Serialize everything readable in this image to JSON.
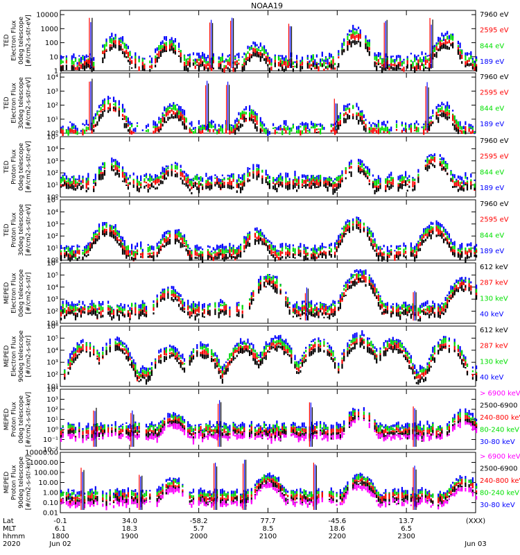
{
  "title": "NOAA19",
  "colors": {
    "black": "#000000",
    "red": "#ff0000",
    "green": "#00e000",
    "blue": "#0000ff",
    "magenta": "#ff00ff"
  },
  "chart_data": [
    {
      "type": "scatter",
      "name": "ted_e_0",
      "ylabel": [
        "TED",
        "Electron Flux",
        "0deg telescope",
        "[#/cm2-s-str-eV]"
      ],
      "log": true,
      "yticks": [
        {
          "v": 1,
          "t": "1"
        },
        {
          "v": 10,
          "t": "10"
        },
        {
          "v": 100,
          "t": "100"
        },
        {
          "v": 1000,
          "t": "1000"
        },
        {
          "v": 10000,
          "t": "10000"
        }
      ],
      "ylim": [
        1,
        20000
      ],
      "series": [
        {
          "name": "7960 eV",
          "color": "black"
        },
        {
          "name": "2595 eV",
          "color": "red"
        },
        {
          "name": "844 eV",
          "color": "green"
        },
        {
          "name": "189 eV",
          "color": "blue"
        }
      ],
      "peaks": [
        {
          "t": 0.13,
          "v": 300
        },
        {
          "t": 0.26,
          "v": 200
        },
        {
          "t": 0.47,
          "v": 80
        },
        {
          "t": 0.71,
          "v": 900
        },
        {
          "t": 0.93,
          "v": 400
        }
      ],
      "base": 8,
      "spikes": [
        {
          "t": 0.07,
          "v": 6000
        },
        {
          "t": 0.36,
          "v": 6000
        },
        {
          "t": 0.41,
          "v": 6000
        },
        {
          "t": 0.55,
          "v": 3000
        },
        {
          "t": 0.78,
          "v": 6000
        },
        {
          "t": 0.89,
          "v": 6000
        }
      ]
    },
    {
      "type": "scatter",
      "name": "ted_e_30",
      "ylabel": [
        "TED",
        "Electron Flux",
        "30deg telescope",
        "[#/cm2-s-str-eV]"
      ],
      "log": true,
      "yticks": [
        {
          "v": 1,
          "t": "10⁰"
        },
        {
          "v": 10,
          "t": "10¹"
        },
        {
          "v": 100,
          "t": "10²"
        },
        {
          "v": 1000,
          "t": "10³"
        },
        {
          "v": 10000,
          "t": "10⁴"
        }
      ],
      "ylim": [
        1,
        20000
      ],
      "series": [
        {
          "name": "7960 eV",
          "color": "black"
        },
        {
          "name": "2595 eV",
          "color": "red"
        },
        {
          "name": "844 eV",
          "color": "green"
        },
        {
          "name": "189 eV",
          "color": "blue"
        }
      ],
      "peaks": [
        {
          "t": 0.12,
          "v": 300
        },
        {
          "t": 0.27,
          "v": 100
        },
        {
          "t": 0.45,
          "v": 50
        },
        {
          "t": 0.7,
          "v": 100
        },
        {
          "t": 0.92,
          "v": 100
        }
      ],
      "base": 3,
      "spikes": [
        {
          "t": 0.07,
          "v": 8000
        },
        {
          "t": 0.35,
          "v": 8000
        },
        {
          "t": 0.4,
          "v": 5000
        },
        {
          "t": 0.66,
          "v": 300
        },
        {
          "t": 0.88,
          "v": 5000
        }
      ]
    },
    {
      "type": "scatter",
      "name": "ted_p_0",
      "ylabel": [
        "TED",
        "Proton Flux",
        "0deg telescope",
        "[#/cm2-s-str-eV]"
      ],
      "log": true,
      "yticks": [
        {
          "v": 1,
          "t": "10⁰"
        },
        {
          "v": 10,
          "t": "10¹"
        },
        {
          "v": 100,
          "t": "10²"
        },
        {
          "v": 1000,
          "t": "10³"
        },
        {
          "v": 10000,
          "t": "10⁴"
        },
        {
          "v": 100000,
          "t": "10⁵"
        }
      ],
      "ylim": [
        1,
        100000
      ],
      "series": [
        {
          "name": "7960 eV",
          "color": "black"
        },
        {
          "name": "2595 eV",
          "color": "red"
        },
        {
          "name": "844 eV",
          "color": "green"
        },
        {
          "name": "189 eV",
          "color": "blue"
        }
      ],
      "peaks": [
        {
          "t": 0.12,
          "v": 1000
        },
        {
          "t": 0.27,
          "v": 500
        },
        {
          "t": 0.47,
          "v": 300
        },
        {
          "t": 0.71,
          "v": 1000
        },
        {
          "t": 0.9,
          "v": 3000
        }
      ],
      "base": 40,
      "spikes": []
    },
    {
      "type": "scatter",
      "name": "ted_p_30",
      "ylabel": [
        "TED",
        "Proton Flux",
        "30deg telescope",
        "[#/cm2-s-str-eV]"
      ],
      "log": true,
      "yticks": [
        {
          "v": 1,
          "t": "10⁰"
        },
        {
          "v": 10,
          "t": "10¹"
        },
        {
          "v": 100,
          "t": "10²"
        },
        {
          "v": 1000,
          "t": "10³"
        },
        {
          "v": 10000,
          "t": "10⁴"
        },
        {
          "v": 100000,
          "t": "10⁵"
        }
      ],
      "ylim": [
        1,
        100000
      ],
      "series": [
        {
          "name": "7960 eV",
          "color": "black"
        },
        {
          "name": "2595 eV",
          "color": "red"
        },
        {
          "name": "844 eV",
          "color": "green"
        },
        {
          "name": "189 eV",
          "color": "blue"
        }
      ],
      "peaks": [
        {
          "t": 0.11,
          "v": 1000
        },
        {
          "t": 0.27,
          "v": 300
        },
        {
          "t": 0.47,
          "v": 300
        },
        {
          "t": 0.71,
          "v": 3000
        },
        {
          "t": 0.9,
          "v": 1000
        }
      ],
      "base": 10,
      "spikes": []
    },
    {
      "type": "scatter",
      "name": "meped_e_0",
      "ylabel": [
        "MEPED",
        "Electron Flux",
        "0deg telescope",
        "[#/cm2-s-str]"
      ],
      "log": true,
      "yticks": [
        {
          "v": 10,
          "t": "10¹"
        },
        {
          "v": 100,
          "t": "10²"
        },
        {
          "v": 1000,
          "t": "10³"
        },
        {
          "v": 10000,
          "t": "10⁴"
        },
        {
          "v": 100000,
          "t": "10⁵"
        },
        {
          "v": 1000000,
          "t": "10⁶"
        }
      ],
      "ylim": [
        10,
        1000000
      ],
      "series": [
        {
          "name": "612 keV",
          "color": "black"
        },
        {
          "name": "287 keV",
          "color": "red"
        },
        {
          "name": "130 keV",
          "color": "green"
        },
        {
          "name": "40 keV",
          "color": "blue"
        }
      ],
      "peaks": [
        {
          "t": 0.26,
          "v": 8000
        },
        {
          "t": 0.5,
          "v": 100000
        },
        {
          "t": 0.72,
          "v": 200000
        },
        {
          "t": 0.97,
          "v": 50000
        }
      ],
      "base": 300,
      "spikes": [
        {
          "t": 0.59,
          "v": 10000
        },
        {
          "t": 0.85,
          "v": 8000
        }
      ]
    },
    {
      "type": "scatter",
      "name": "meped_e_90",
      "ylabel": [
        "MEPED",
        "Electron Flux",
        "90deg telescope",
        "[#/cm2-s-str]"
      ],
      "log": true,
      "yticks": [
        {
          "v": 10,
          "t": "10¹"
        },
        {
          "v": 100,
          "t": "10²"
        },
        {
          "v": 1000,
          "t": "10³"
        },
        {
          "v": 10000,
          "t": "10⁴"
        },
        {
          "v": 100000,
          "t": "10⁵"
        },
        {
          "v": 1000000,
          "t": "10⁶"
        }
      ],
      "ylim": [
        10,
        1000000
      ],
      "series": [
        {
          "name": "612 keV",
          "color": "black"
        },
        {
          "name": "287 keV",
          "color": "red"
        },
        {
          "name": "130 keV",
          "color": "green"
        },
        {
          "name": "40 keV",
          "color": "blue"
        }
      ],
      "peaks": [
        {
          "t": 0.06,
          "v": 50000
        },
        {
          "t": 0.13,
          "v": 80000
        },
        {
          "t": 0.26,
          "v": 20000
        },
        {
          "t": 0.34,
          "v": 30000
        },
        {
          "t": 0.44,
          "v": 50000
        },
        {
          "t": 0.52,
          "v": 100000
        },
        {
          "t": 0.62,
          "v": 80000
        },
        {
          "t": 0.72,
          "v": 200000
        },
        {
          "t": 0.8,
          "v": 80000
        },
        {
          "t": 0.93,
          "v": 100000
        }
      ],
      "base": 200,
      "spikes": []
    },
    {
      "type": "scatter",
      "name": "meped_p_0",
      "ylabel": [
        "MEPED",
        "Proton Flux",
        "0deg telescope",
        "[#/cm2-s-str-keV]"
      ],
      "log": true,
      "yticks": [
        {
          "v": 0.01,
          "t": "10⁻²"
        },
        {
          "v": 0.1,
          "t": "10⁻¹"
        },
        {
          "v": 1,
          "t": "10⁰"
        },
        {
          "v": 10,
          "t": "10¹"
        },
        {
          "v": 100,
          "t": "10²"
        },
        {
          "v": 1000,
          "t": "10³"
        },
        {
          "v": 10000,
          "t": "10⁴"
        }
      ],
      "ylim": [
        0.01,
        10000
      ],
      "series": [
        {
          "name": "> 6900 keV",
          "color": "magenta"
        },
        {
          "name": "2500-6900",
          "color": "black"
        },
        {
          "name": "240-800 keV",
          "color": "red"
        },
        {
          "name": "80-240 keV",
          "color": "green"
        },
        {
          "name": "30-80 keV",
          "color": "blue"
        }
      ],
      "peaks": [
        {
          "t": 0.27,
          "v": 30
        },
        {
          "t": 0.72,
          "v": 100
        },
        {
          "t": 0.97,
          "v": 50
        }
      ],
      "base": 2,
      "spikes": [
        {
          "t": 0.08,
          "v": 200
        },
        {
          "t": 0.17,
          "v": 100
        },
        {
          "t": 0.38,
          "v": 1000
        },
        {
          "t": 0.6,
          "v": 500
        },
        {
          "t": 0.85,
          "v": 200
        }
      ]
    },
    {
      "type": "scatter",
      "name": "meped_p_90",
      "ylabel": [
        "MEPED",
        "Proton Flux",
        "90deg telescope",
        "[#/cm2-s-str-keV]"
      ],
      "log": true,
      "yticks": [
        {
          "v": 0.01,
          "t": "0.01"
        },
        {
          "v": 0.1,
          "t": "0.10"
        },
        {
          "v": 1,
          "t": "1.00"
        },
        {
          "v": 10,
          "t": "10.00"
        },
        {
          "v": 100,
          "t": "100.00"
        },
        {
          "v": 1000,
          "t": "1000.00"
        },
        {
          "v": 10000,
          "t": "10000.00"
        }
      ],
      "ylim": [
        0.01,
        10000
      ],
      "series": [
        {
          "name": "> 6900 keV",
          "color": "magenta"
        },
        {
          "name": "2500-6900",
          "color": "black"
        },
        {
          "name": "240-800 keV",
          "color": "red"
        },
        {
          "name": "80-240 keV",
          "color": "green"
        },
        {
          "name": "30-80 keV",
          "color": "blue"
        }
      ],
      "peaks": [
        {
          "t": 0.27,
          "v": 20
        },
        {
          "t": 0.5,
          "v": 50
        },
        {
          "t": 0.72,
          "v": 50
        },
        {
          "t": 0.97,
          "v": 30
        }
      ],
      "base": 1,
      "spikes": [
        {
          "t": 0.05,
          "v": 300
        },
        {
          "t": 0.19,
          "v": 100
        },
        {
          "t": 0.37,
          "v": 1000
        },
        {
          "t": 0.44,
          "v": 2000
        },
        {
          "t": 0.61,
          "v": 1000
        },
        {
          "t": 0.85,
          "v": 500
        }
      ]
    }
  ],
  "xaxis": {
    "row_labels": [
      "Lat",
      "MLT",
      "hhmm",
      "2020"
    ],
    "ticks": [
      {
        "pos": 0.0,
        "lines": [
          "-0.1",
          "6.1",
          "1800",
          "Jun 02"
        ]
      },
      {
        "pos": 0.1667,
        "lines": [
          "34.0",
          "18.3",
          "1900",
          ""
        ]
      },
      {
        "pos": 0.3333,
        "lines": [
          "-58.2",
          "5.7",
          "2000",
          ""
        ]
      },
      {
        "pos": 0.5,
        "lines": [
          "77.7",
          "8.5",
          "2100",
          ""
        ]
      },
      {
        "pos": 0.6667,
        "lines": [
          "-45.6",
          "18.6",
          "2200",
          ""
        ]
      },
      {
        "pos": 0.8333,
        "lines": [
          "13.7",
          "6.5",
          "2300",
          ""
        ]
      },
      {
        "pos": 1.0,
        "lines": [
          "(XXX)",
          "",
          "",
          "Jun 03"
        ]
      }
    ]
  }
}
